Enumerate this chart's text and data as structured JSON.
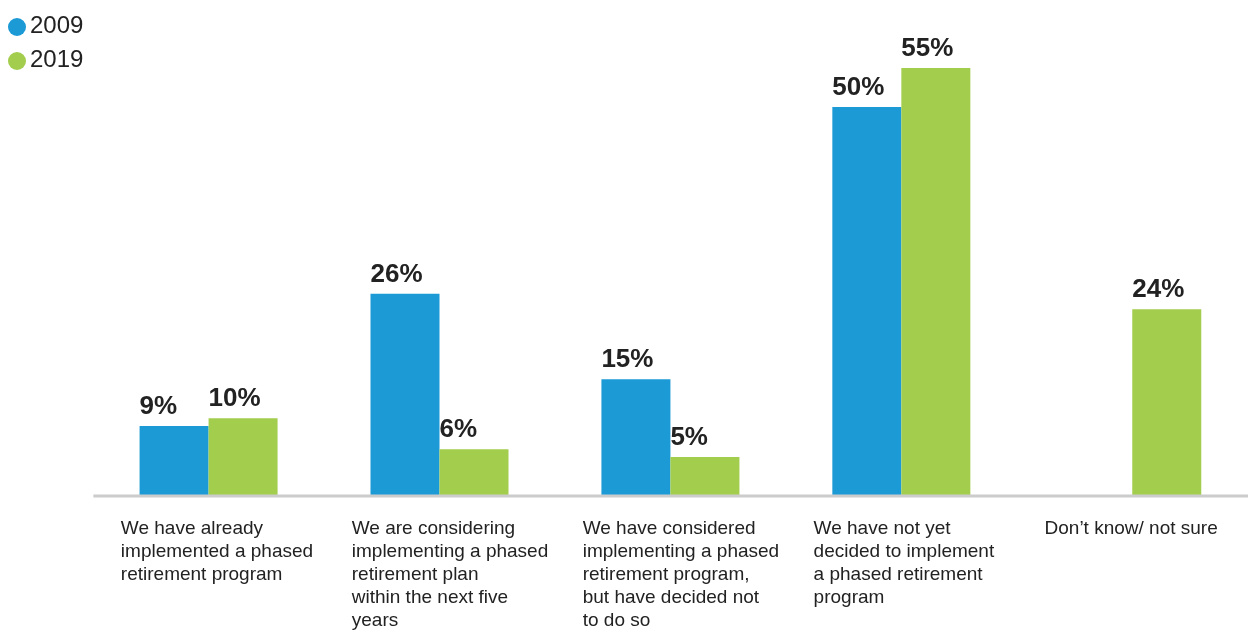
{
  "chart_data": {
    "type": "bar",
    "categories": [
      "We have already implemented a phased retirement program",
      "We are considering implementing a phased retirement plan within the next five years",
      "We have considered implementing a phased retirement program, but have decided not to do so",
      "We have not yet decided to implement a phased retirement program",
      "Don’t know/ not sure"
    ],
    "series": [
      {
        "name": "2009",
        "color": "#1b9ad6",
        "values": [
          9,
          26,
          15,
          50,
          null
        ],
        "value_labels": [
          "9%",
          "26%",
          "15%",
          "50%",
          null
        ]
      },
      {
        "name": "2019",
        "color": "#a3cd4c",
        "values": [
          10,
          6,
          5,
          55,
          24
        ],
        "value_labels": [
          "10%",
          "6%",
          "5%",
          "55%",
          "24%"
        ]
      }
    ],
    "legend": "top left",
    "tick_labels": "x",
    "grid": false
  }
}
